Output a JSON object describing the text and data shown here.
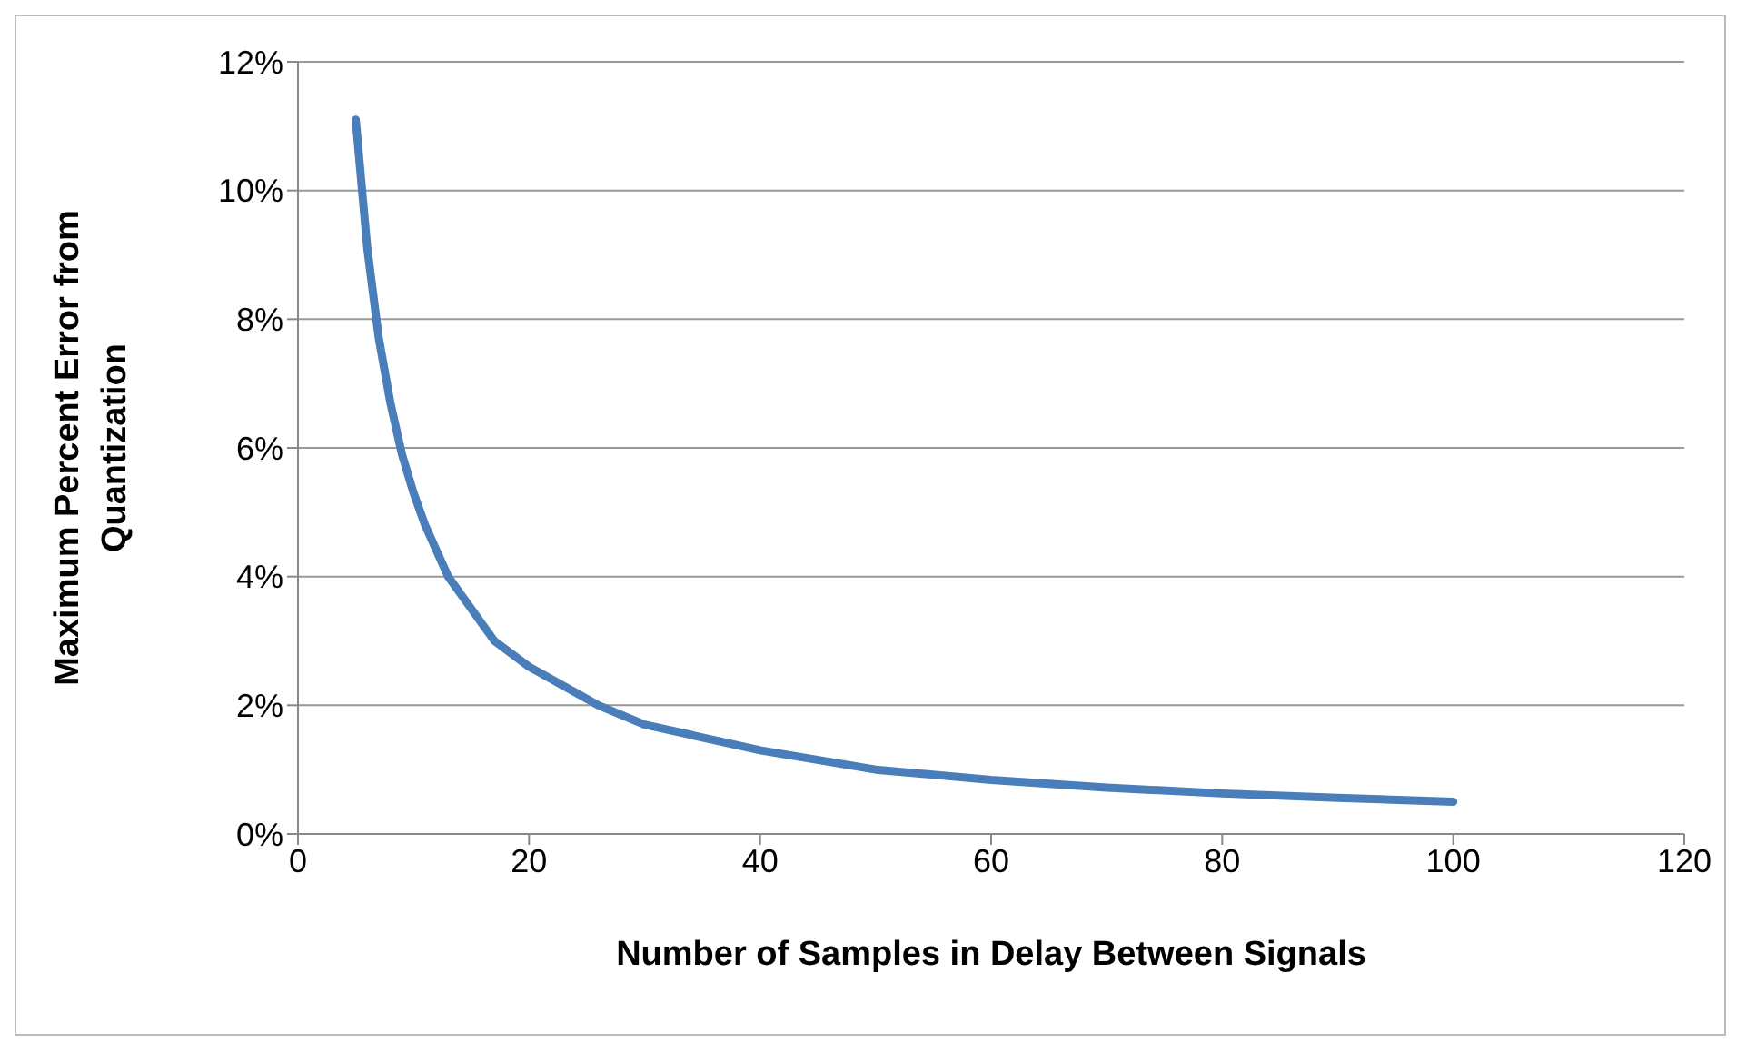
{
  "chart_data": {
    "type": "line",
    "xlabel": "Number of Samples in Delay Between Signals",
    "ylabel": "Maximum Percent Error from Quantization",
    "x": [
      5,
      6,
      7,
      8,
      9,
      10,
      11,
      13,
      17,
      20,
      26,
      30,
      40,
      50,
      60,
      70,
      80,
      90,
      100
    ],
    "series": [
      {
        "color": "#4a7ebb",
        "values": [
          11.1,
          9.1,
          7.7,
          6.7,
          5.9,
          5.3,
          4.8,
          4.0,
          3.0,
          2.6,
          2.0,
          1.7,
          1.3,
          1.0,
          0.84,
          0.72,
          0.63,
          0.56,
          0.5
        ]
      }
    ],
    "xlim": [
      0,
      120
    ],
    "xticks": [
      0,
      20,
      40,
      60,
      80,
      100,
      120
    ],
    "ylim": [
      0,
      12
    ],
    "yticks": [
      {
        "value": 0,
        "label": "0%"
      },
      {
        "value": 2,
        "label": "2%"
      },
      {
        "value": 4,
        "label": "4%"
      },
      {
        "value": 6,
        "label": "6%"
      },
      {
        "value": 8,
        "label": "8%"
      },
      {
        "value": 10,
        "label": "10%"
      },
      {
        "value": 12,
        "label": "12%"
      }
    ],
    "grid": "y",
    "marker": "none",
    "line_style": "solid"
  }
}
